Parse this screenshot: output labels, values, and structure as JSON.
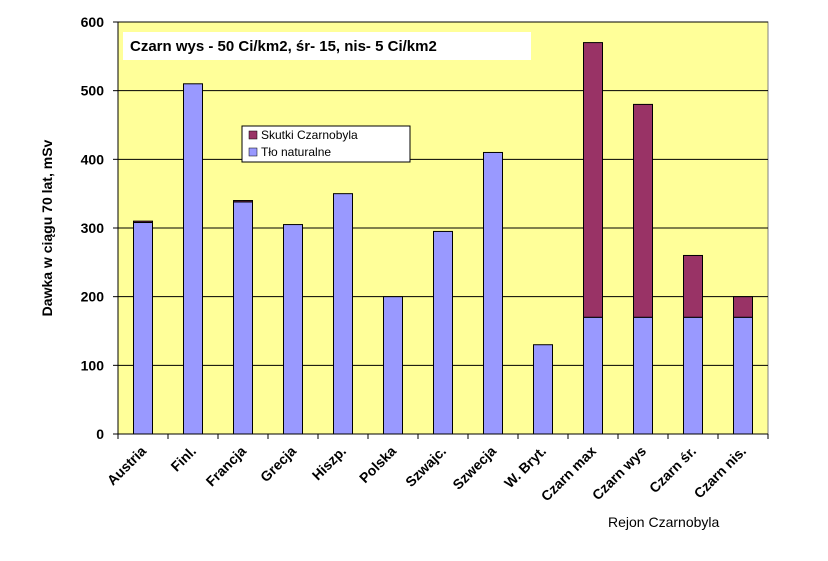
{
  "chart_data": {
    "type": "bar",
    "stacked": true,
    "annotation": "Czarn  wys - 50 Ci/km2,  śr- 15,  nis- 5 Ci/km2",
    "ylabel": "Dawka w ciągu 70 lat,  mSv",
    "xlabel": "",
    "group_note": "Rejon Czarnobyla",
    "ylim": [
      0,
      600
    ],
    "yticks": [
      "0",
      "100",
      "200",
      "300",
      "400",
      "500",
      "600"
    ],
    "grid": true,
    "legend_position": "upper-left-center",
    "categories": [
      "Austria",
      "Finl.",
      "Francja",
      "Grecja",
      "Hiszp.",
      "Polska",
      "Szwajc.",
      "Szwecja",
      "W. Bryt.",
      "Czarn max",
      "Czarn wys",
      "Czarn śr.",
      "Czarn nis."
    ],
    "series": [
      {
        "name": "Tło naturalne",
        "color": "#9999ff",
        "values": [
          308,
          510,
          338,
          305,
          350,
          200,
          295,
          410,
          130,
          170,
          170,
          170,
          170
        ]
      },
      {
        "name": "Skutki Czarnobyla",
        "color": "#993366",
        "values": [
          2,
          0,
          2,
          0,
          0,
          0,
          0,
          0,
          0,
          400,
          310,
          90,
          30
        ]
      }
    ],
    "legend_order": [
      "Skutki Czarnobyla",
      "Tło naturalne"
    ],
    "plot_background": "#ffff99"
  }
}
